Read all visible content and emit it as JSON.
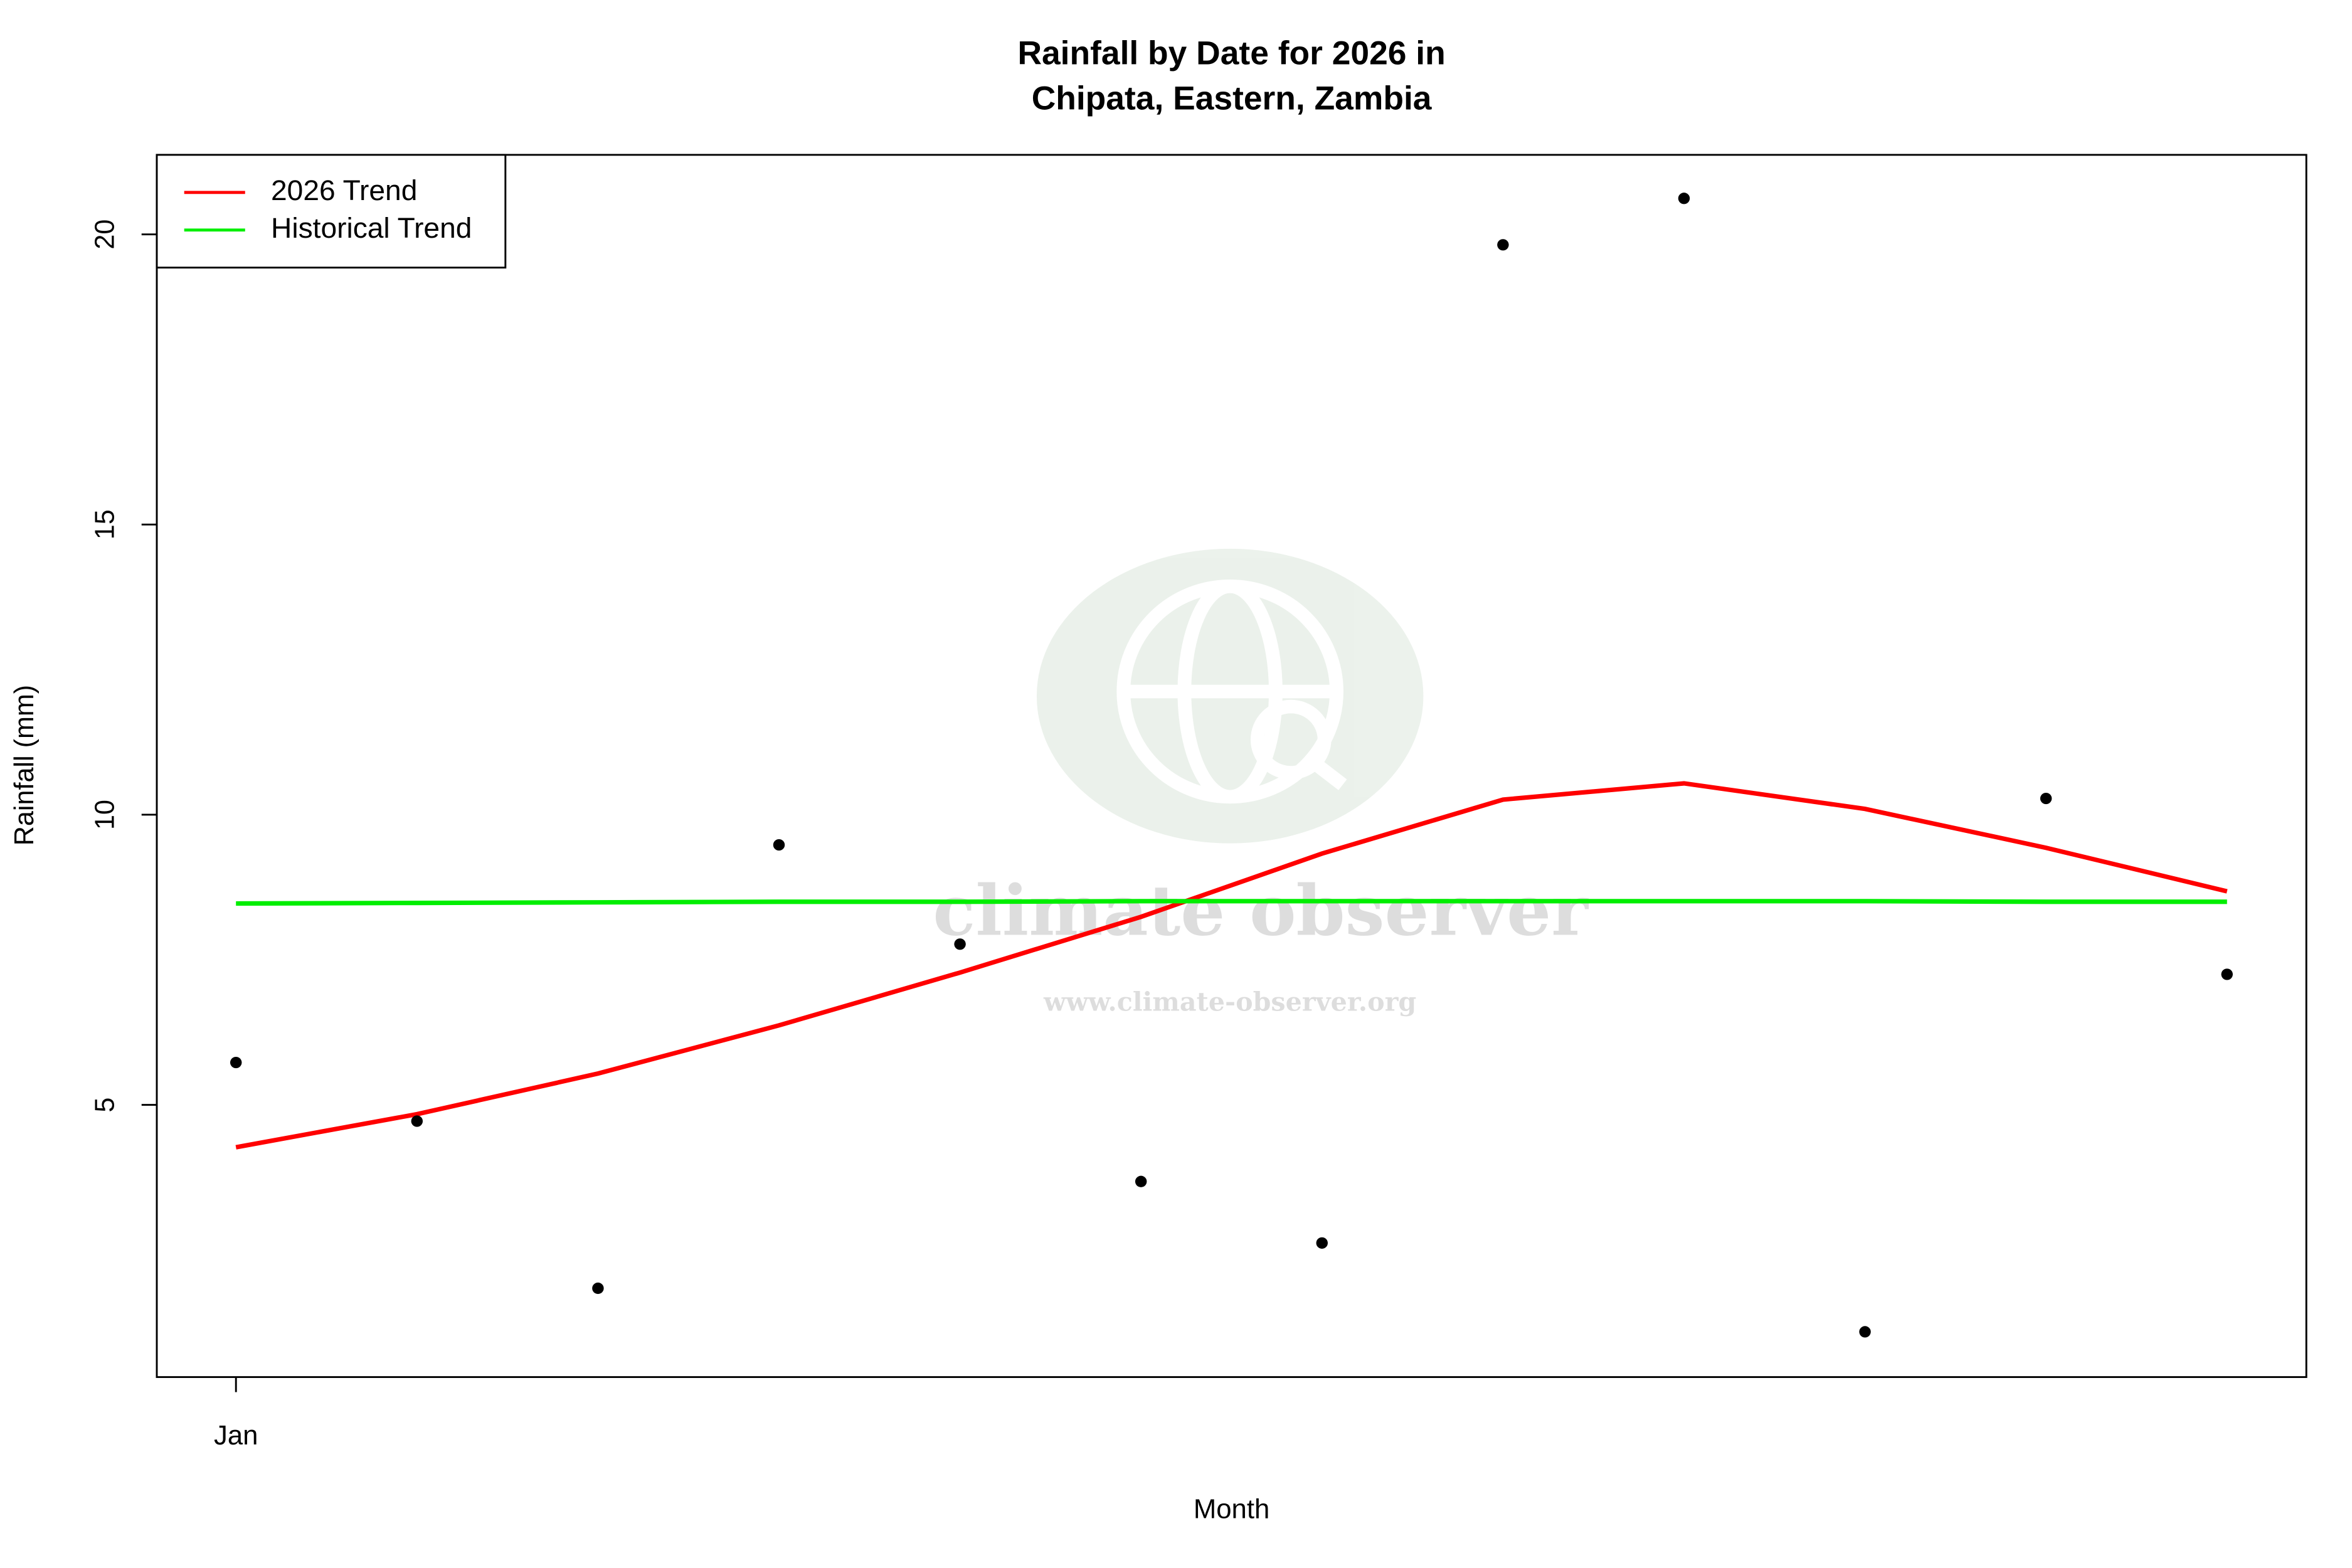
{
  "chart_data": {
    "type": "line",
    "title": "Rainfall by Date for 2026 in",
    "subtitle": "Chipata, Eastern, Zambia",
    "x_label": "Month",
    "y_label": "Rainfall (mm)",
    "categories": [
      "Jan",
      null,
      null,
      null,
      null,
      null,
      null,
      null,
      null,
      null,
      null,
      null
    ],
    "values": [
      5.73,
      4.72,
      1.84,
      9.48,
      7.77,
      3.68,
      2.62,
      19.82,
      20.62,
      1.09,
      10.28,
      7.25
    ],
    "color": "#000000",
    "series": [
      {
        "name": "2026 Trend",
        "color": "#ff0000",
        "values": [
          4.27,
          4.84,
          5.54,
          6.37,
          7.28,
          8.24,
          9.33,
          10.26,
          10.54,
          10.1,
          9.43,
          8.68
        ]
      },
      {
        "name": "Historical Trend",
        "color": "#00ee00",
        "values": [
          8.47,
          8.48,
          8.49,
          8.5,
          8.5,
          8.51,
          8.51,
          8.51,
          8.51,
          8.51,
          8.5,
          8.5
        ]
      }
    ],
    "ylim": [
      0.31,
      21.37
    ],
    "yticks": [
      5,
      10,
      15,
      20
    ],
    "grid": false,
    "legend": "topleft",
    "watermark": {
      "title": "climate observer",
      "url": "www.climate-observer.org"
    }
  }
}
